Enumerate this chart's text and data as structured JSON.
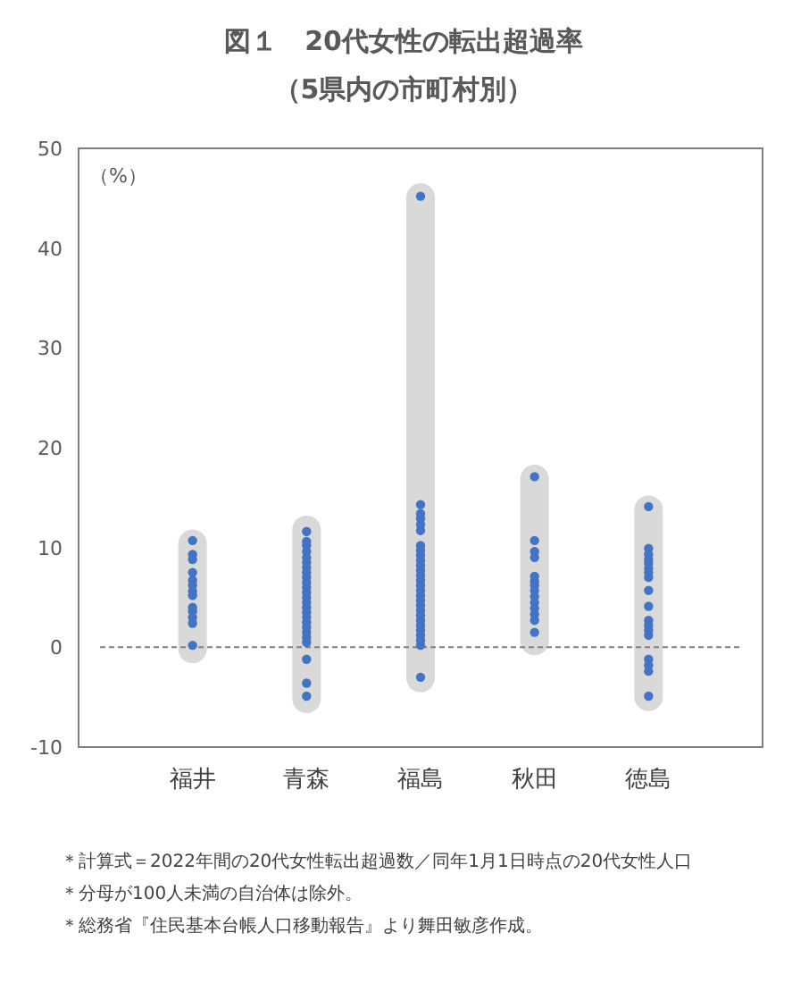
{
  "chart_data": {
    "type": "scatter",
    "title": "図１　20代女性の転出超過率",
    "subtitle": "（5県内の市町村別）",
    "ylabel": "（%）",
    "categories": [
      "福井",
      "青森",
      "福島",
      "秋田",
      "徳島"
    ],
    "ylim": [
      -10,
      50
    ],
    "yticks": [
      -10,
      0,
      10,
      20,
      30,
      40,
      50
    ],
    "grid": false,
    "marker": "circle",
    "ref_lines": [
      {
        "axis": "y",
        "value": 0,
        "color": "#808080",
        "line_style": "dashed"
      }
    ],
    "series": [
      {
        "type": "bar",
        "color": "#d9d9d9",
        "base": [
          -1.6,
          -6.6,
          -4.5,
          -0.8,
          -6.4
        ],
        "values": [
          13.4,
          19.8,
          51.0,
          19.1,
          21.6
        ]
      },
      {
        "color": "#4472c4",
        "x": [
          "福井",
          "福井",
          "福井",
          "福井",
          "福井",
          "福井",
          "福井",
          "福井",
          "福井",
          "福井",
          "福井",
          "福井",
          "福井"
        ],
        "values": [
          10.7,
          9.3,
          8.8,
          7.5,
          6.7,
          6.2,
          5.6,
          5.2,
          4.0,
          3.6,
          3.0,
          2.4,
          0.2
        ]
      },
      {
        "color": "#4472c4",
        "x": [
          "青森",
          "青森",
          "青森",
          "青森",
          "青森",
          "青森",
          "青森",
          "青森",
          "青森",
          "青森",
          "青森",
          "青森",
          "青森",
          "青森",
          "青森",
          "青森",
          "青森",
          "青森",
          "青森",
          "青森",
          "青森",
          "青森",
          "青森",
          "青森",
          "青森"
        ],
        "values": [
          11.6,
          10.6,
          10.2,
          9.6,
          9.0,
          8.5,
          8.0,
          7.5,
          7.0,
          6.5,
          6.0,
          5.5,
          5.0,
          4.5,
          4.0,
          3.5,
          3.0,
          2.5,
          2.0,
          1.5,
          1.0,
          0.5,
          -1.2,
          -3.6,
          -4.9
        ]
      },
      {
        "color": "#4472c4",
        "x": [
          "福島",
          "福島",
          "福島",
          "福島",
          "福島",
          "福島",
          "福島",
          "福島",
          "福島",
          "福島",
          "福島",
          "福島",
          "福島",
          "福島",
          "福島",
          "福島",
          "福島",
          "福島",
          "福島",
          "福島",
          "福島",
          "福島",
          "福島",
          "福島",
          "福島",
          "福島",
          "福島",
          "福島"
        ],
        "values": [
          45.2,
          14.3,
          13.4,
          12.9,
          12.3,
          11.7,
          10.2,
          9.7,
          9.2,
          8.7,
          8.2,
          7.7,
          7.2,
          6.7,
          6.2,
          5.7,
          5.2,
          4.7,
          4.2,
          3.7,
          3.2,
          2.7,
          2.2,
          1.7,
          1.2,
          0.7,
          0.2,
          -3.0
        ]
      },
      {
        "color": "#4472c4",
        "x": [
          "秋田",
          "秋田",
          "秋田",
          "秋田",
          "秋田",
          "秋田",
          "秋田",
          "秋田",
          "秋田",
          "秋田",
          "秋田",
          "秋田",
          "秋田",
          "秋田"
        ],
        "values": [
          17.1,
          10.7,
          9.6,
          9.0,
          7.1,
          6.6,
          6.2,
          5.7,
          5.1,
          4.5,
          3.9,
          3.3,
          2.7,
          1.5
        ]
      },
      {
        "color": "#4472c4",
        "x": [
          "徳島",
          "徳島",
          "徳島",
          "徳島",
          "徳島",
          "徳島",
          "徳島",
          "徳島",
          "徳島",
          "徳島",
          "徳島",
          "徳島",
          "徳島",
          "徳島",
          "徳島",
          "徳島",
          "徳島",
          "徳島"
        ],
        "values": [
          14.1,
          9.9,
          9.3,
          8.8,
          8.4,
          7.9,
          7.5,
          7.0,
          5.7,
          4.1,
          2.7,
          2.2,
          1.7,
          1.2,
          -1.2,
          -1.8,
          -2.4,
          -4.9
        ]
      }
    ],
    "annotations": [
      "＊計算式＝2022年間の20代女性転出超過数／同年1月1日時点の20代女性人口",
      "＊分母が100人未満の自治体は除外。",
      "＊総務省『住民基本台帳人口移動報告』より舞田敏彦作成。"
    ]
  }
}
